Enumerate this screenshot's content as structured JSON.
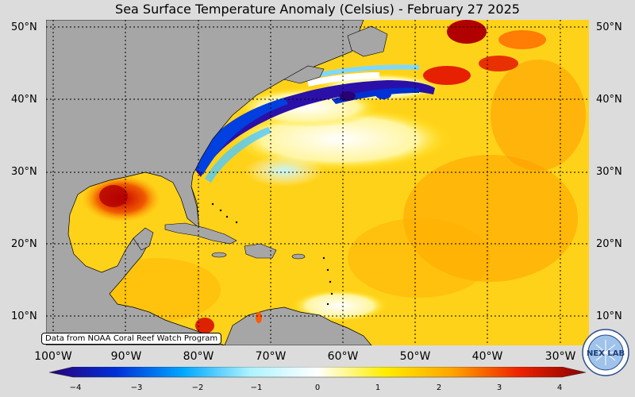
{
  "title": "Sea Surface Temperature Anomaly (Celsius) - February 27 2025",
  "lat_labels": [
    "50°N",
    "40°N",
    "30°N",
    "20°N",
    "10°N"
  ],
  "lon_labels": [
    "100°W",
    "90°W",
    "80°W",
    "70°W",
    "60°W",
    "50°W",
    "40°W",
    "30°W"
  ],
  "colorbar": {
    "ticks": [
      "−4",
      "−3",
      "−2",
      "−1",
      "0",
      "1",
      "2",
      "3",
      "4"
    ],
    "min": -4,
    "max": 4,
    "colors": [
      "#2a0077",
      "#0030d8",
      "#00a8ff",
      "#aef3ff",
      "#ffffff",
      "#ffee00",
      "#ffa500",
      "#ee2200",
      "#8b0000"
    ]
  },
  "credit": "Data from NOAA Coral Reef Watch Program",
  "logo_text": "NEX LAB",
  "colors": {
    "land": "#a6a6a6",
    "ocean_base": "#ffd21a",
    "background": "#dcdcdc"
  }
}
